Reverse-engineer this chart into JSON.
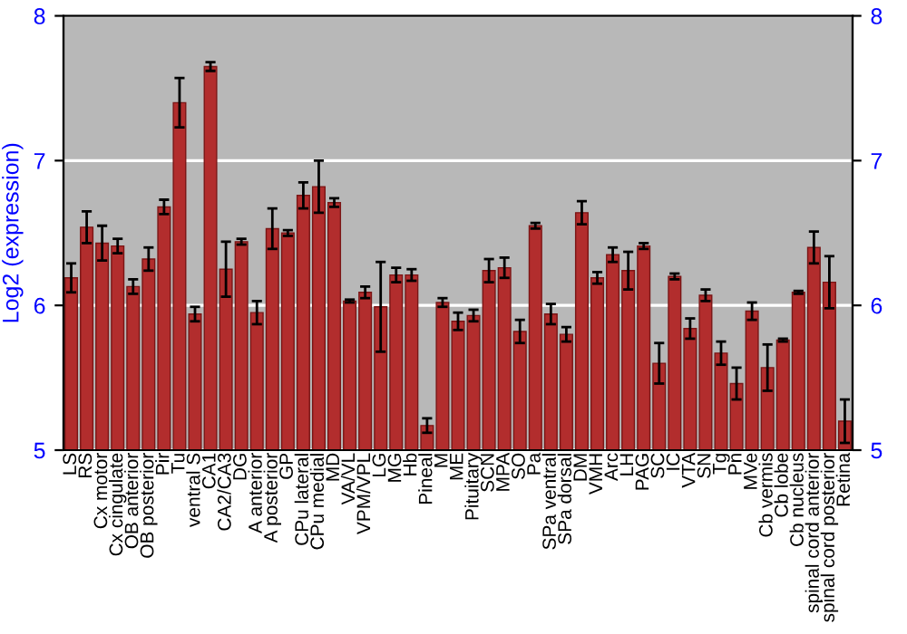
{
  "chart_data": {
    "type": "bar",
    "ylabel": "Log2 (expression)",
    "categories": [
      "LS",
      "RS",
      "Cx motor",
      "Cx cingulate",
      "OB anterior",
      "OB posterior",
      "Pir",
      "Tu",
      "ventral S",
      "CA1",
      "CA2/CA3",
      "DG",
      "A anterior",
      "A posterior",
      "GP",
      "CPu lateral",
      "CPu medial",
      "MD",
      "VA/VL",
      "VPM/VPL",
      "LG",
      "MG",
      "Hb",
      "Pineal",
      "M",
      "ME",
      "Pituitary",
      "SCN",
      "MPA",
      "SO",
      "Pa",
      "SPa ventral",
      "SPa dorsal",
      "DM",
      "VMH",
      "Arc",
      "LH",
      "PAG",
      "SC",
      "IC",
      "VTA",
      "SN",
      "Tg",
      "Pn",
      "MVe",
      "Cb vermis",
      "Cb lobe",
      "Cb nucleus",
      "spinal cord anterior",
      "spinal cord posterior",
      "Retina"
    ],
    "values": [
      6.19,
      6.54,
      6.43,
      6.41,
      6.13,
      6.32,
      6.68,
      7.4,
      5.94,
      7.65,
      6.25,
      6.44,
      5.95,
      6.53,
      6.5,
      6.76,
      6.82,
      6.71,
      6.03,
      6.09,
      5.99,
      6.21,
      6.21,
      5.17,
      6.02,
      5.89,
      5.93,
      6.24,
      6.26,
      5.82,
      6.55,
      5.94,
      5.8,
      6.64,
      6.19,
      6.35,
      6.24,
      6.41,
      5.6,
      6.2,
      5.84,
      6.07,
      5.67,
      5.46,
      5.96,
      5.57,
      5.76,
      6.09,
      6.4,
      6.16,
      5.2
    ],
    "errors": [
      0.1,
      0.11,
      0.12,
      0.05,
      0.05,
      0.08,
      0.05,
      0.17,
      0.05,
      0.03,
      0.19,
      0.02,
      0.08,
      0.14,
      0.02,
      0.09,
      0.18,
      0.03,
      0.01,
      0.04,
      0.31,
      0.05,
      0.04,
      0.05,
      0.03,
      0.06,
      0.04,
      0.08,
      0.07,
      0.08,
      0.02,
      0.07,
      0.05,
      0.08,
      0.04,
      0.05,
      0.13,
      0.02,
      0.14,
      0.02,
      0.07,
      0.04,
      0.08,
      0.11,
      0.06,
      0.16,
      0.01,
      0.01,
      0.11,
      0.18,
      0.15
    ],
    "color": "#b22d2d",
    "ylim": [
      5,
      8
    ],
    "yticks": [
      5,
      6,
      7,
      8
    ],
    "y2lim": [
      5,
      8
    ],
    "y2ticks": [
      5,
      6,
      7,
      8
    ],
    "grid": "y",
    "legend": false
  }
}
